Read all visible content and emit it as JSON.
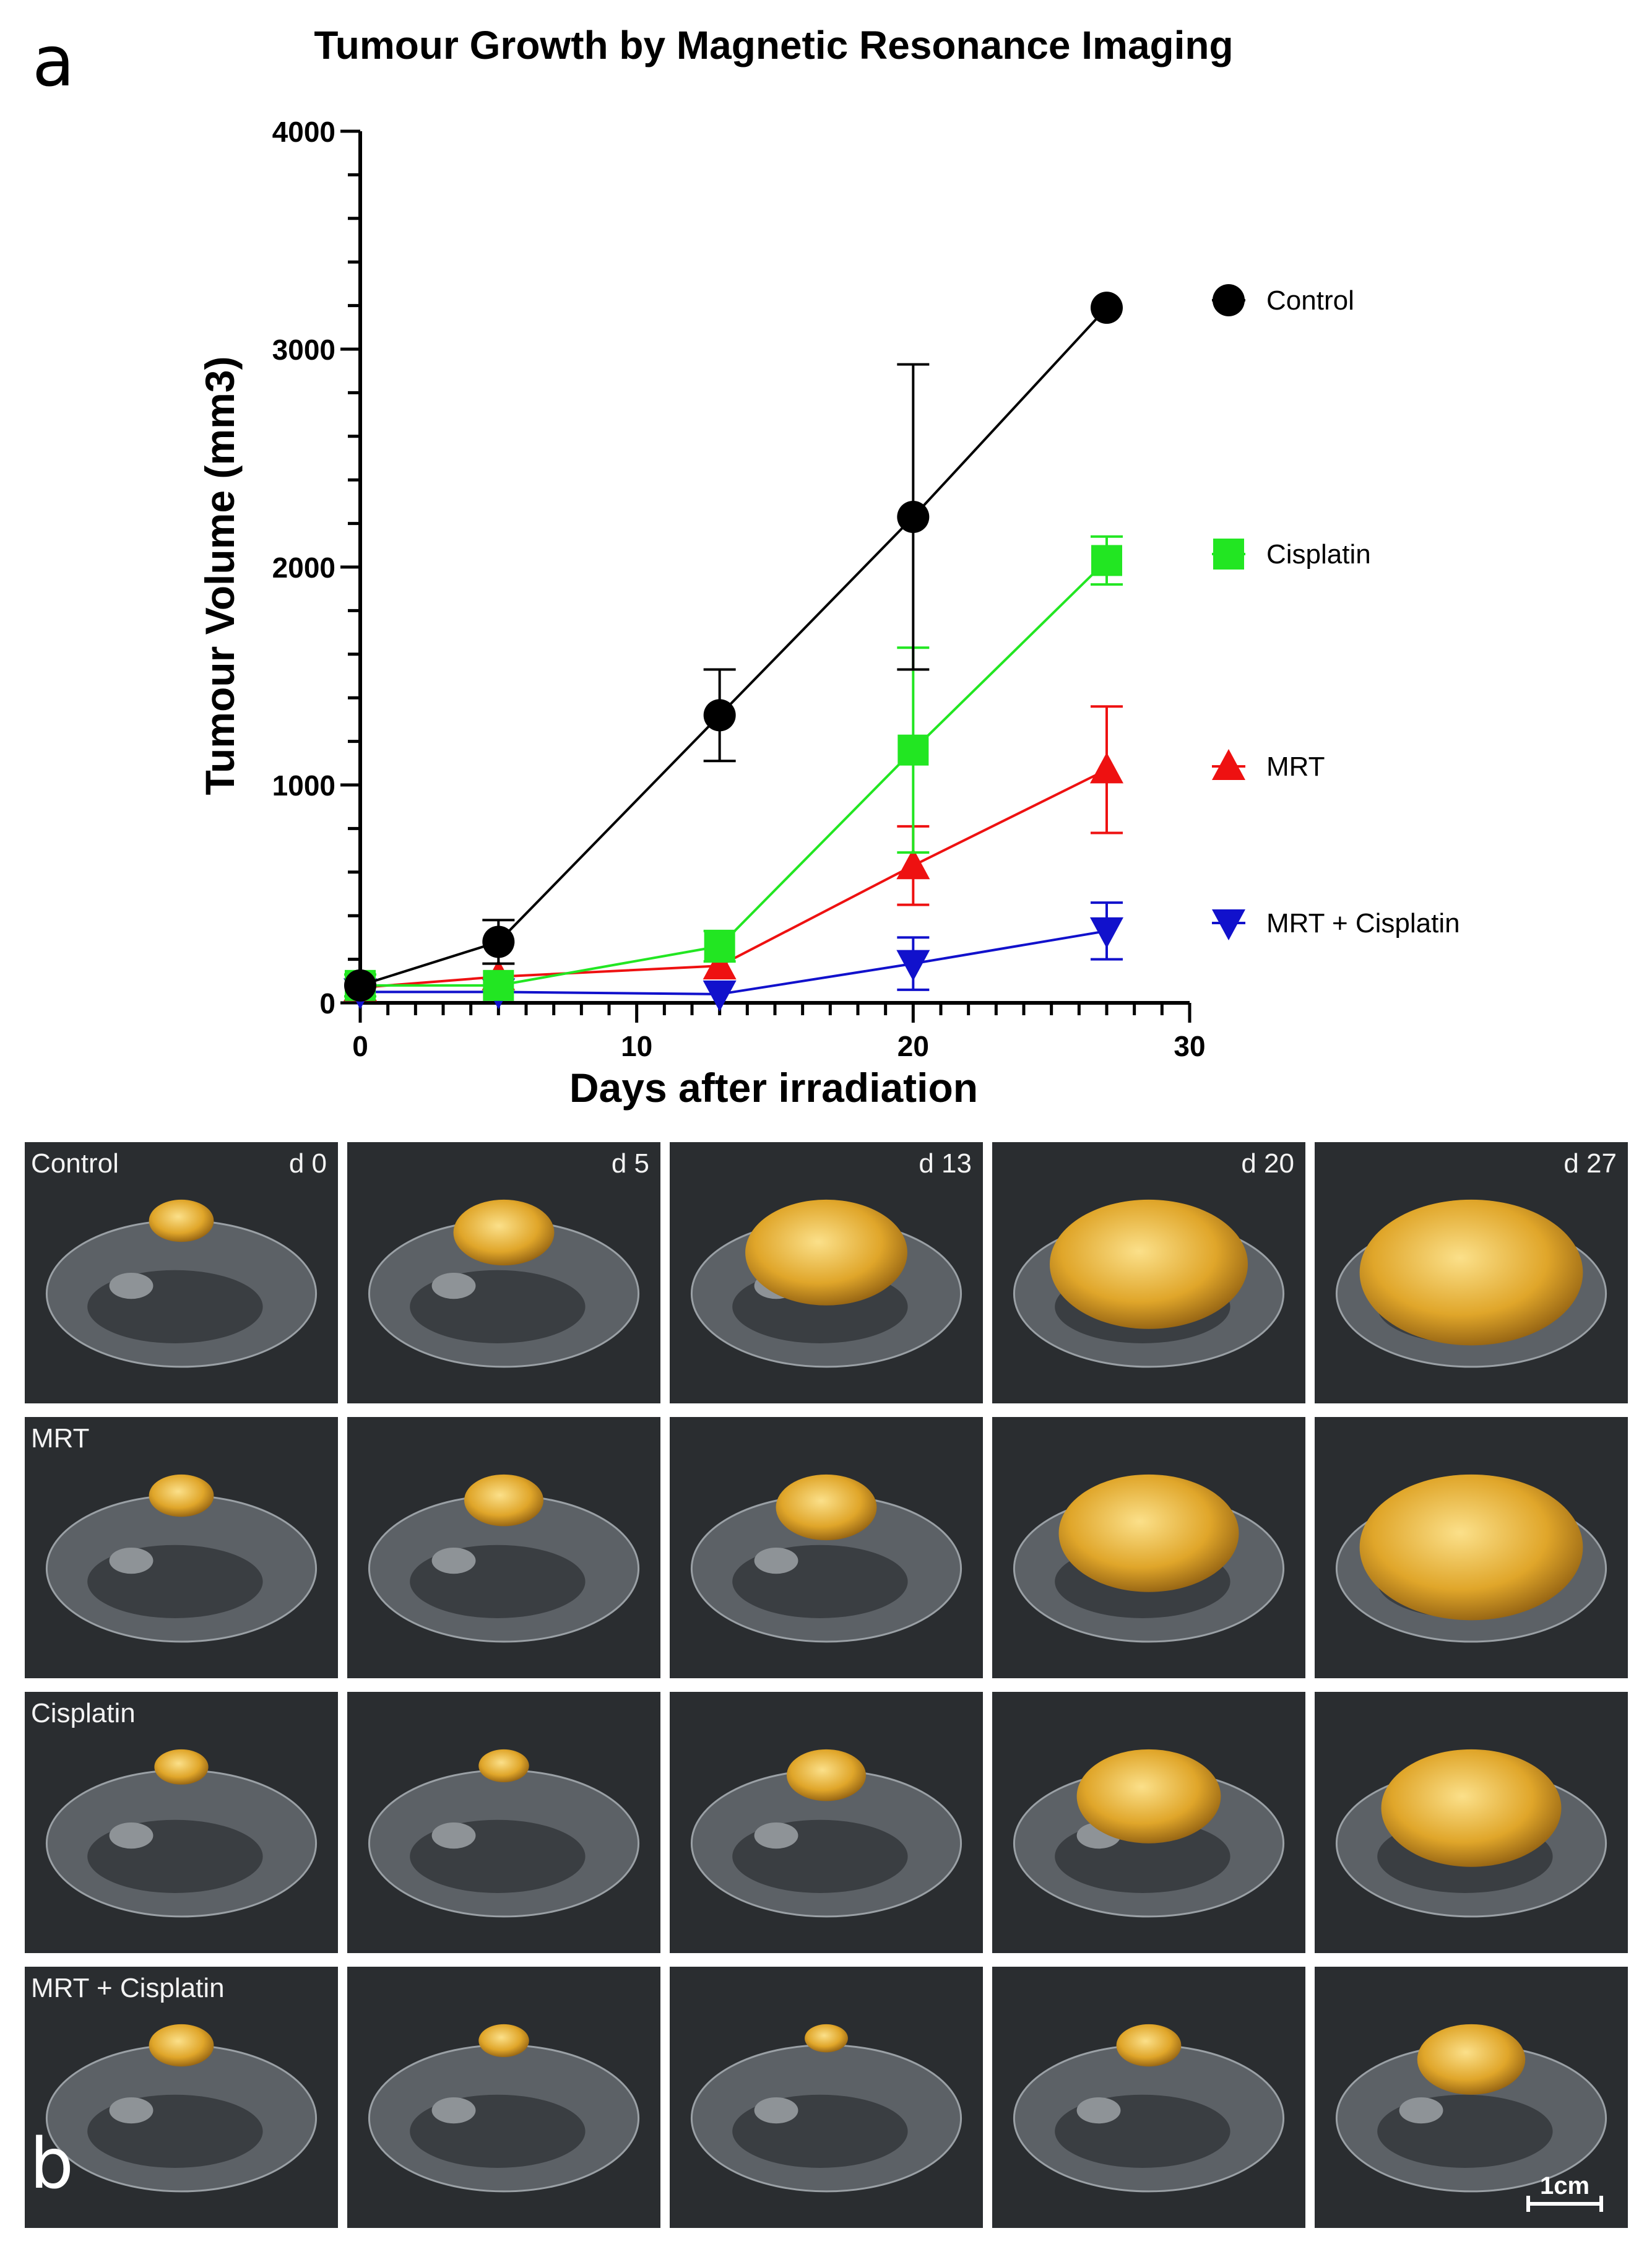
{
  "panel_a_letter": "a",
  "panel_b_letter": "b",
  "chart_data": {
    "type": "line",
    "title": "Tumour Growth by Magnetic Resonance Imaging",
    "xlabel": "Days after irradiation",
    "ylabel": "Tumour Volume  (mm3)",
    "xlim": [
      0,
      30
    ],
    "ylim": [
      0,
      4000
    ],
    "x_ticks": [
      0,
      10,
      20,
      30
    ],
    "y_ticks": [
      0,
      1000,
      2000,
      3000,
      4000
    ],
    "grid": false,
    "legend_position": "right",
    "series": [
      {
        "name": "Control",
        "color": "#000000",
        "marker": "circle",
        "x": [
          0,
          5,
          13,
          20,
          27
        ],
        "values": [
          80,
          280,
          1320,
          2230,
          3190
        ],
        "err": [
          0,
          100,
          210,
          700,
          0
        ]
      },
      {
        "name": "Cisplatin",
        "color": "#22e622",
        "marker": "square",
        "x": [
          0,
          5,
          13,
          20,
          27
        ],
        "values": [
          80,
          80,
          260,
          1160,
          2030
        ],
        "err": [
          50,
          0,
          70,
          470,
          110
        ]
      },
      {
        "name": "MRT",
        "color": "#ee1111",
        "marker": "triangle-up",
        "x": [
          0,
          5,
          13,
          20,
          27
        ],
        "values": [
          70,
          120,
          170,
          630,
          1070
        ],
        "err": [
          0,
          0,
          0,
          180,
          290
        ]
      },
      {
        "name": "MRT + Cisplatin",
        "color": "#1111cc",
        "marker": "triangle-down",
        "x": [
          0,
          5,
          13,
          20,
          27
        ],
        "values": [
          50,
          50,
          40,
          180,
          330
        ],
        "err": [
          0,
          0,
          0,
          120,
          130
        ]
      }
    ]
  },
  "mri_panel": {
    "rows": [
      {
        "group": "Control"
      },
      {
        "group": "MRT"
      },
      {
        "group": "Cisplatin"
      },
      {
        "group": "MRT + Cisplatin"
      }
    ],
    "days": [
      "d 0",
      "d 5",
      "d 13",
      "d 20",
      "d 27"
    ],
    "scale_bar": "1cm",
    "tumour_color": "#e0a62a"
  }
}
